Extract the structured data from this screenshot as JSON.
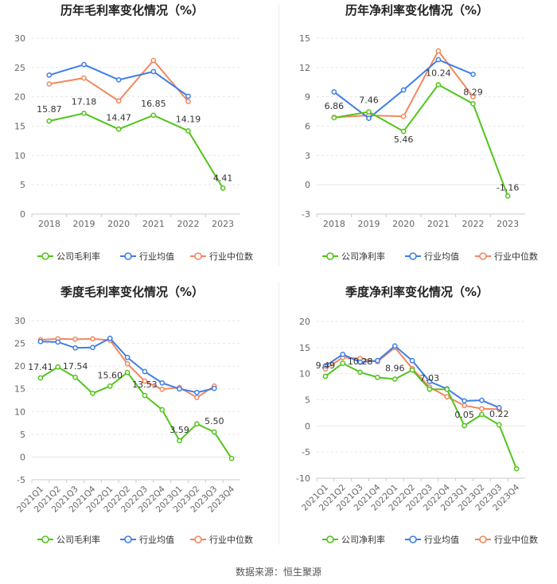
{
  "source_text": "数据来源：恒生聚源",
  "colors": {
    "company": "#52c41a",
    "industry_avg": "#3f7ee8",
    "industry_median": "#f2875f",
    "grid": "#e6e6e6",
    "axis_text": "#666666",
    "label_text": "#333333"
  },
  "chart_data": [
    {
      "id": "annual-gross",
      "type": "line",
      "title": "历年毛利率变化情况（%）",
      "categories": [
        "2018",
        "2019",
        "2020",
        "2021",
        "2022",
        "2023"
      ],
      "ylim": [
        0,
        30
      ],
      "yticks": [
        0,
        5,
        10,
        15,
        20,
        25,
        30
      ],
      "series": [
        {
          "key": "company",
          "name": "公司毛利率",
          "values": [
            15.87,
            17.18,
            14.47,
            16.85,
            14.19,
            4.41
          ],
          "labels": [
            "15.87",
            "17.18",
            "14.47",
            "16.85",
            "14.19",
            "4.41"
          ]
        },
        {
          "key": "industry_avg",
          "name": "行业均值",
          "values": [
            23.7,
            25.5,
            22.9,
            24.3,
            20.1,
            null
          ]
        },
        {
          "key": "industry_median",
          "name": "行业中位数",
          "values": [
            22.2,
            23.2,
            19.3,
            26.2,
            19.2,
            null
          ]
        }
      ]
    },
    {
      "id": "annual-net",
      "type": "line",
      "title": "历年净利率变化情况（%）",
      "categories": [
        "2018",
        "2019",
        "2020",
        "2021",
        "2022",
        "2023"
      ],
      "ylim": [
        -3,
        15
      ],
      "yticks": [
        -3,
        0,
        3,
        6,
        9,
        12,
        15
      ],
      "series": [
        {
          "key": "company",
          "name": "公司净利率",
          "values": [
            6.86,
            7.46,
            5.46,
            10.24,
            8.29,
            -1.16
          ],
          "labels": [
            "6.86",
            "7.46",
            "5.46",
            "10.24",
            "8.29",
            "-1.16"
          ]
        },
        {
          "key": "industry_avg",
          "name": "行业均值",
          "values": [
            9.5,
            6.8,
            9.7,
            12.8,
            11.3,
            null
          ]
        },
        {
          "key": "industry_median",
          "name": "行业中位数",
          "values": [
            6.9,
            7.1,
            7.0,
            13.7,
            9.0,
            null
          ]
        }
      ]
    },
    {
      "id": "quarterly-gross",
      "type": "line",
      "title": "季度毛利率变化情况（%）",
      "categories": [
        "2021Q1",
        "2021Q2",
        "2021Q3",
        "2021Q4",
        "2022Q1",
        "2022Q2",
        "2022Q3",
        "2022Q4",
        "2023Q1",
        "2023Q2",
        "2023Q3",
        "2023Q4"
      ],
      "ylim": [
        -5,
        30
      ],
      "yticks": [
        -5,
        0,
        5,
        10,
        15,
        20,
        25,
        30
      ],
      "series": [
        {
          "key": "company",
          "name": "公司毛利率",
          "values": [
            17.41,
            19.8,
            17.54,
            14.0,
            15.6,
            18.6,
            13.53,
            10.4,
            3.59,
            7.3,
            5.5,
            -0.3
          ],
          "labels": [
            "17.41",
            "",
            "17.54",
            "",
            "15.60",
            "",
            "13.53",
            "",
            "3.59",
            "",
            "5.50",
            ""
          ]
        },
        {
          "key": "industry_avg",
          "name": "行业均值",
          "values": [
            25.4,
            25.3,
            24.0,
            24.1,
            26.1,
            21.9,
            18.8,
            16.3,
            15.0,
            14.2,
            15.1,
            null
          ]
        },
        {
          "key": "industry_median",
          "name": "行业中位数",
          "values": [
            25.8,
            26.0,
            25.9,
            26.0,
            25.7,
            20.5,
            16.7,
            14.9,
            15.3,
            13.1,
            15.6,
            null
          ]
        }
      ]
    },
    {
      "id": "quarterly-net",
      "type": "line",
      "title": "季度净利率变化情况（%）",
      "categories": [
        "2021Q1",
        "2021Q2",
        "2021Q3",
        "2021Q4",
        "2022Q1",
        "2022Q2",
        "2022Q3",
        "2022Q4",
        "2023Q1",
        "2023Q2",
        "2023Q3",
        "2023Q4"
      ],
      "ylim": [
        -10,
        20
      ],
      "yticks": [
        -10,
        -5,
        0,
        5,
        10,
        15,
        20
      ],
      "series": [
        {
          "key": "company",
          "name": "公司净利率",
          "values": [
            9.49,
            12.0,
            10.28,
            9.3,
            8.96,
            10.7,
            7.03,
            7.0,
            0.05,
            2.2,
            0.22,
            -8.2
          ],
          "labels": [
            "9.49",
            "",
            "10.28",
            "",
            "8.96",
            "",
            "7.03",
            "",
            "0.05",
            "",
            "0.22",
            ""
          ]
        },
        {
          "key": "industry_avg",
          "name": "行业均值",
          "values": [
            11.5,
            13.7,
            12.2,
            12.5,
            15.3,
            12.5,
            8.5,
            7.1,
            4.8,
            4.9,
            3.5,
            null
          ]
        },
        {
          "key": "industry_median",
          "name": "行业中位数",
          "values": [
            10.9,
            13.1,
            12.9,
            12.3,
            15.0,
            11.0,
            7.4,
            5.6,
            3.9,
            3.3,
            3.2,
            null
          ]
        }
      ]
    }
  ]
}
